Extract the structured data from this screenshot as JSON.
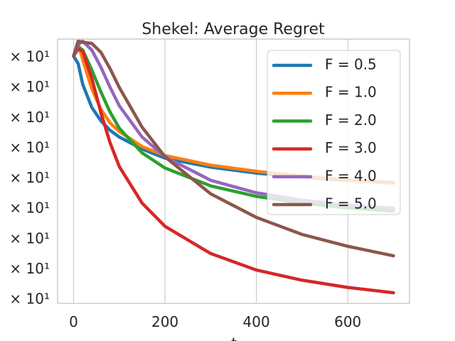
{
  "chart_data": {
    "type": "line",
    "title": "Shekel: Average Regret",
    "xlabel": "t",
    "ylabel": "",
    "xlim": [
      -35,
      735
    ],
    "x_ticks": [
      0,
      200,
      400,
      600
    ],
    "x_tick_labels": [
      "0",
      "200",
      "400",
      "600"
    ],
    "y_scale": "log",
    "y_tick_labels": [
      "× 10¹",
      "× 10¹",
      "× 10¹",
      "× 10¹",
      "× 10¹",
      "× 10¹",
      "× 10¹",
      "× 10¹",
      "× 10¹"
    ],
    "grid": true,
    "legend_position": "top-right",
    "x": [
      0,
      10,
      20,
      40,
      60,
      80,
      100,
      150,
      200,
      300,
      400,
      500,
      600,
      700
    ],
    "series": [
      {
        "name": "F = 0.5",
        "color": "#1f77b4",
        "values": [
          10.5,
          9.9,
          8.4,
          7.0,
          6.3,
          5.85,
          5.55,
          5.05,
          4.7,
          4.38,
          4.18,
          4.05,
          3.95,
          3.88
        ]
      },
      {
        "name": "F = 1.0",
        "color": "#ff7f0e",
        "values": [
          10.5,
          11.6,
          10.2,
          8.1,
          6.9,
          6.2,
          5.8,
          5.15,
          4.8,
          4.45,
          4.24,
          4.08,
          3.96,
          3.86
        ]
      },
      {
        "name": "F = 2.0",
        "color": "#2ca02c",
        "values": [
          10.5,
          11.3,
          11.0,
          9.4,
          7.9,
          6.75,
          5.95,
          4.9,
          4.35,
          3.78,
          3.48,
          3.3,
          3.18,
          3.1
        ]
      },
      {
        "name": "F = 3.0",
        "color": "#d62728",
        "values": [
          10.5,
          11.1,
          10.9,
          8.8,
          6.7,
          5.3,
          4.4,
          3.3,
          2.75,
          2.22,
          1.95,
          1.8,
          1.7,
          1.63
        ]
      },
      {
        "name": "F = 4.0",
        "color": "#9467bd",
        "values": [
          10.5,
          11.5,
          11.8,
          11.0,
          9.6,
          8.2,
          7.1,
          5.55,
          4.75,
          3.95,
          3.58,
          3.38,
          3.25,
          3.17
        ]
      },
      {
        "name": "F = 5.0",
        "color": "#8c564b",
        "values": [
          10.5,
          11.8,
          11.7,
          11.6,
          10.8,
          9.5,
          8.2,
          6.0,
          4.75,
          3.55,
          2.95,
          2.58,
          2.35,
          2.18
        ]
      }
    ],
    "ylim": [
      1.5,
      12.0
    ]
  }
}
